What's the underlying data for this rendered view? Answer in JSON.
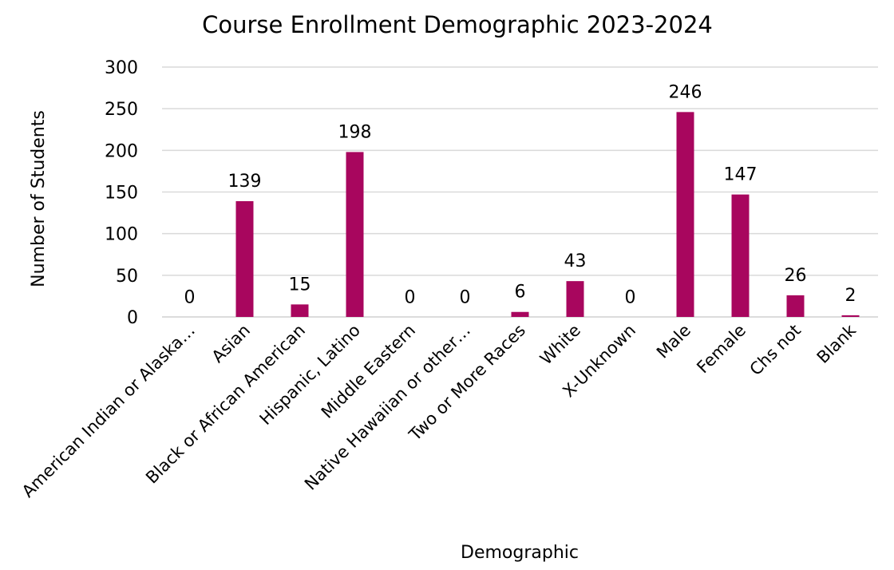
{
  "chart_data": {
    "type": "bar",
    "title": "Course Enrollment Demographic 2023-2024",
    "xlabel": "Demographic",
    "ylabel": "Number of Students",
    "categories": [
      "American Indian or Alaska…",
      "Asian",
      "Black or African American",
      "Hispanic, Latino",
      "Middle Eastern",
      "Native Hawaiian or other…",
      "Two or More Races",
      "White",
      "X-Unknown",
      "Male",
      "Female",
      "Chs not",
      "Blank"
    ],
    "values": [
      0,
      139,
      15,
      198,
      0,
      0,
      6,
      43,
      0,
      246,
      147,
      26,
      2
    ],
    "yticks": [
      0,
      50,
      100,
      150,
      200,
      250,
      300
    ],
    "ylim": [
      0,
      300
    ],
    "grid": true,
    "legend": "none",
    "bar_color": "#a8065e"
  }
}
